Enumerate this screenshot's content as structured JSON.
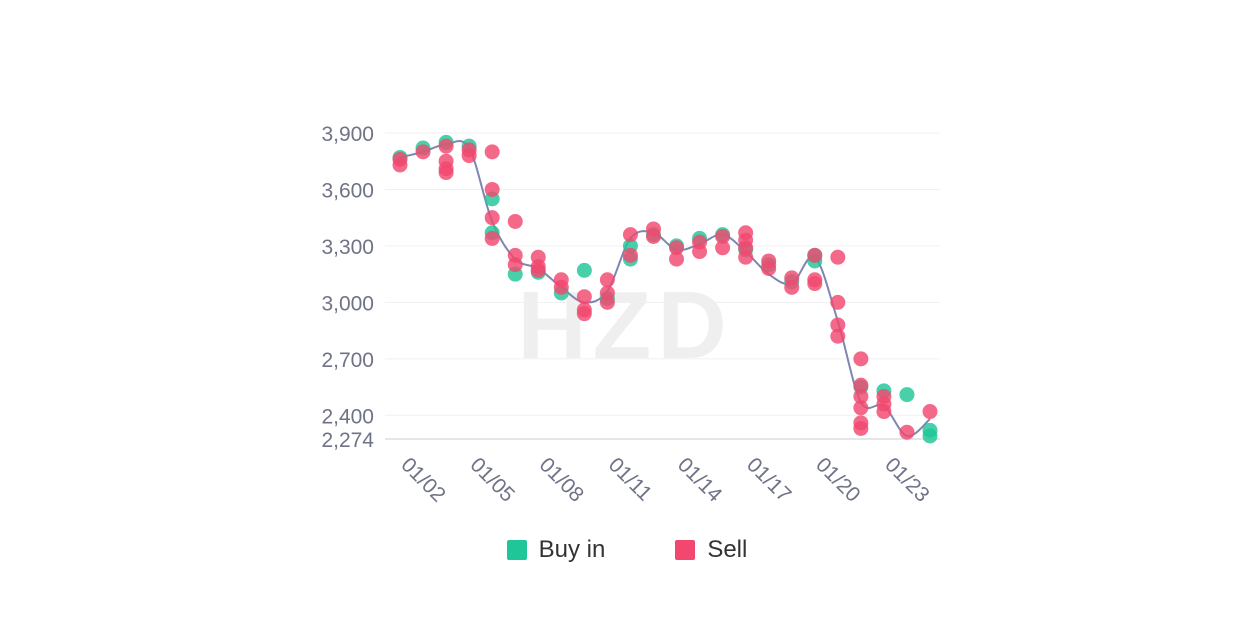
{
  "watermark": "HZD",
  "colors": {
    "buy": "#1fc697",
    "sell": "#f2486f",
    "line": "#7e86b3",
    "grid": "#f1f1f1",
    "axis": "#e6e6e6"
  },
  "chart_data": {
    "type": "scatter",
    "title": "",
    "xlabel": "",
    "ylabel": "",
    "x_ticks": [
      "01/02",
      "01/05",
      "01/08",
      "01/11",
      "01/14",
      "01/17",
      "01/20",
      "01/23"
    ],
    "y_ticks": [
      2274,
      2400,
      2700,
      3000,
      3300,
      3600,
      3900
    ],
    "y_tick_labels": [
      "2,274",
      "2,400",
      "2,700",
      "3,000",
      "3,300",
      "3,600",
      "3,900"
    ],
    "ylim": [
      2274,
      3900
    ],
    "xlim_days": [
      "01/02",
      "01/25"
    ],
    "grid": true,
    "legend_position": "bottom-center",
    "series": [
      {
        "name": "Buy in",
        "points": [
          [
            "01/02",
            3770
          ],
          [
            "01/03",
            3820
          ],
          [
            "01/04",
            3850
          ],
          [
            "01/05",
            3830
          ],
          [
            "01/06",
            3550
          ],
          [
            "01/06",
            3370
          ],
          [
            "01/07",
            3150
          ],
          [
            "01/08",
            3160
          ],
          [
            "01/09",
            3050
          ],
          [
            "01/10",
            3170
          ],
          [
            "01/11",
            3020
          ],
          [
            "01/12",
            3300
          ],
          [
            "01/12",
            3230
          ],
          [
            "01/13",
            3360
          ],
          [
            "01/14",
            3300
          ],
          [
            "01/15",
            3340
          ],
          [
            "01/16",
            3360
          ],
          [
            "01/17",
            3280
          ],
          [
            "01/18",
            3200
          ],
          [
            "01/19",
            3110
          ],
          [
            "01/20",
            3220
          ],
          [
            "01/20",
            3250
          ],
          [
            "01/22",
            2550
          ],
          [
            "01/23",
            2530
          ],
          [
            "01/24",
            2510
          ],
          [
            "01/25",
            2290
          ],
          [
            "01/25",
            2320
          ]
        ]
      },
      {
        "name": "Sell",
        "points": [
          [
            "01/02",
            3760
          ],
          [
            "01/02",
            3730
          ],
          [
            "01/03",
            3800
          ],
          [
            "01/04",
            3830
          ],
          [
            "01/04",
            3750
          ],
          [
            "01/04",
            3710
          ],
          [
            "01/04",
            3690
          ],
          [
            "01/05",
            3810
          ],
          [
            "01/05",
            3780
          ],
          [
            "01/06",
            3800
          ],
          [
            "01/06",
            3600
          ],
          [
            "01/06",
            3450
          ],
          [
            "01/06",
            3340
          ],
          [
            "01/07",
            3430
          ],
          [
            "01/07",
            3250
          ],
          [
            "01/07",
            3200
          ],
          [
            "01/08",
            3240
          ],
          [
            "01/08",
            3190
          ],
          [
            "01/08",
            3170
          ],
          [
            "01/09",
            3120
          ],
          [
            "01/09",
            3080
          ],
          [
            "01/10",
            3030
          ],
          [
            "01/10",
            2960
          ],
          [
            "01/10",
            2940
          ],
          [
            "01/11",
            3120
          ],
          [
            "01/11",
            3050
          ],
          [
            "01/11",
            3000
          ],
          [
            "01/12",
            3360
          ],
          [
            "01/12",
            3250
          ],
          [
            "01/13",
            3390
          ],
          [
            "01/13",
            3350
          ],
          [
            "01/14",
            3290
          ],
          [
            "01/14",
            3230
          ],
          [
            "01/15",
            3320
          ],
          [
            "01/15",
            3270
          ],
          [
            "01/16",
            3350
          ],
          [
            "01/16",
            3290
          ],
          [
            "01/17",
            3370
          ],
          [
            "01/17",
            3330
          ],
          [
            "01/17",
            3290
          ],
          [
            "01/17",
            3240
          ],
          [
            "01/18",
            3220
          ],
          [
            "01/18",
            3180
          ],
          [
            "01/19",
            3130
          ],
          [
            "01/19",
            3080
          ],
          [
            "01/20",
            3120
          ],
          [
            "01/20",
            3100
          ],
          [
            "01/20",
            3250
          ],
          [
            "01/21",
            3240
          ],
          [
            "01/21",
            3000
          ],
          [
            "01/21",
            2880
          ],
          [
            "01/21",
            2820
          ],
          [
            "01/22",
            2700
          ],
          [
            "01/22",
            2560
          ],
          [
            "01/22",
            2500
          ],
          [
            "01/22",
            2440
          ],
          [
            "01/22",
            2360
          ],
          [
            "01/22",
            2330
          ],
          [
            "01/23",
            2500
          ],
          [
            "01/23",
            2460
          ],
          [
            "01/23",
            2420
          ],
          [
            "01/24",
            2310
          ],
          [
            "01/25",
            2420
          ]
        ]
      }
    ],
    "trend_line": {
      "x": [
        "01/02",
        "01/03",
        "01/04",
        "01/05",
        "01/06",
        "01/07",
        "01/08",
        "01/09",
        "01/10",
        "01/11",
        "01/12",
        "01/13",
        "01/14",
        "01/15",
        "01/16",
        "01/17",
        "01/18",
        "01/19",
        "01/20",
        "01/21",
        "01/22",
        "01/23",
        "01/24",
        "01/25"
      ],
      "y": [
        3770,
        3800,
        3840,
        3820,
        3430,
        3230,
        3180,
        3080,
        3000,
        3060,
        3340,
        3370,
        3280,
        3310,
        3360,
        3270,
        3150,
        3100,
        3240,
        2900,
        2470,
        2450,
        2290,
        2380
      ]
    }
  },
  "legend": {
    "buy_label": "Buy in",
    "sell_label": "Sell"
  }
}
